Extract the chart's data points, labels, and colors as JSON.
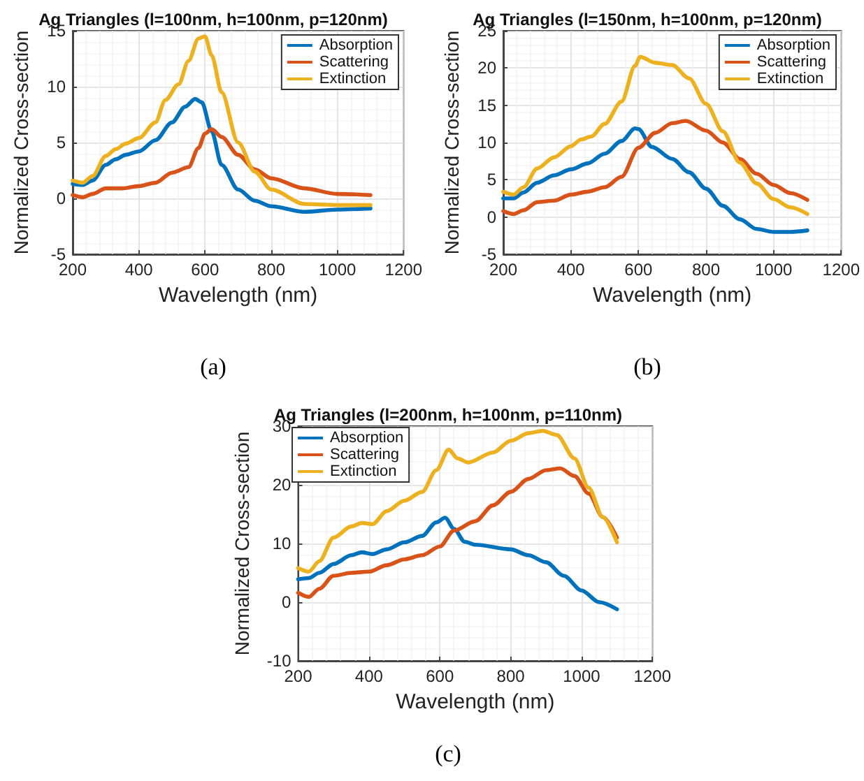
{
  "chart_data": [
    {
      "type": "line",
      "title": "Ag Triangles (l=100nm, h=100nm, p=120nm)",
      "xlabel": "Wavelength (nm)",
      "ylabel": "Normalized Cross-section",
      "annotations": [
        "(a)"
      ],
      "xlim": [
        200,
        1200
      ],
      "xticks": [
        200,
        400,
        600,
        800,
        1000,
        1200
      ],
      "ylim": [
        -5,
        15
      ],
      "yticks": [
        -5,
        0,
        5,
        10,
        15
      ],
      "grid": true,
      "legend": "top right",
      "series": [
        {
          "name": "Absorption",
          "color": "#0072bd",
          "x": [
            200,
            230,
            260,
            300,
            330,
            360,
            400,
            450,
            500,
            540,
            570,
            590,
            620,
            650,
            700,
            750,
            800,
            900,
            1000,
            1100
          ],
          "values": [
            1.3,
            1.2,
            1.6,
            3.0,
            3.5,
            3.9,
            4.2,
            5.2,
            6.8,
            8.2,
            8.9,
            8.6,
            6.0,
            3.0,
            0.8,
            -0.2,
            -0.7,
            -1.2,
            -1.0,
            -0.9
          ]
        },
        {
          "name": "Scattering",
          "color": "#d95319",
          "x": [
            200,
            230,
            260,
            300,
            350,
            400,
            450,
            500,
            550,
            580,
            600,
            620,
            650,
            700,
            750,
            800,
            900,
            1000,
            1100
          ],
          "values": [
            0.3,
            0.1,
            0.4,
            0.9,
            0.9,
            1.1,
            1.4,
            2.3,
            2.8,
            4.5,
            5.8,
            6.2,
            5.5,
            3.9,
            2.6,
            1.8,
            0.9,
            0.4,
            0.3
          ]
        },
        {
          "name": "Extinction",
          "color": "#edb120",
          "x": [
            200,
            230,
            260,
            300,
            330,
            360,
            400,
            450,
            480,
            520,
            550,
            580,
            600,
            620,
            650,
            700,
            750,
            800,
            900,
            1000,
            1100
          ],
          "values": [
            1.6,
            1.4,
            2.0,
            3.8,
            4.4,
            4.9,
            5.4,
            6.8,
            8.8,
            10.2,
            12.3,
            14.3,
            14.5,
            12.8,
            9.5,
            5.0,
            2.4,
            0.8,
            -0.5,
            -0.6,
            -0.6
          ]
        }
      ]
    },
    {
      "type": "line",
      "title": "Ag Triangles (l=150nm, h=100nm, p=120nm)",
      "xlabel": "Wavelength (nm)",
      "ylabel": "Normalized Cross-section",
      "annotations": [
        "(b)"
      ],
      "xlim": [
        200,
        1200
      ],
      "xticks": [
        200,
        400,
        600,
        800,
        1000,
        1200
      ],
      "ylim": [
        -5,
        25
      ],
      "yticks": [
        -5,
        0,
        5,
        10,
        15,
        20,
        25
      ],
      "grid": true,
      "legend": "top right",
      "series": [
        {
          "name": "Absorption",
          "color": "#0072bd",
          "x": [
            200,
            230,
            260,
            300,
            350,
            400,
            450,
            500,
            550,
            590,
            600,
            640,
            700,
            750,
            800,
            850,
            900,
            950,
            1000,
            1050,
            1100
          ],
          "values": [
            2.5,
            2.5,
            3.3,
            4.6,
            5.6,
            6.4,
            7.2,
            8.5,
            10.2,
            11.9,
            11.8,
            9.4,
            7.8,
            6.0,
            3.8,
            1.5,
            -0.3,
            -1.6,
            -2.0,
            -2.0,
            -1.8
          ]
        },
        {
          "name": "Scattering",
          "color": "#d95319",
          "x": [
            200,
            230,
            260,
            300,
            350,
            400,
            450,
            500,
            550,
            600,
            650,
            700,
            740,
            800,
            850,
            900,
            950,
            1000,
            1050,
            1100
          ],
          "values": [
            0.8,
            0.4,
            0.9,
            2.0,
            2.2,
            3.0,
            3.4,
            4.0,
            5.4,
            9.3,
            11.3,
            12.6,
            12.9,
            11.6,
            10.0,
            7.8,
            5.8,
            4.3,
            3.2,
            2.3
          ]
        },
        {
          "name": "Extinction",
          "color": "#edb120",
          "x": [
            200,
            230,
            260,
            300,
            350,
            400,
            430,
            460,
            500,
            550,
            590,
            605,
            650,
            700,
            750,
            800,
            850,
            900,
            950,
            1000,
            1050,
            1100
          ],
          "values": [
            3.4,
            3.0,
            4.0,
            6.5,
            8.0,
            9.5,
            10.4,
            10.8,
            12.5,
            15.5,
            20.3,
            21.5,
            20.7,
            20.4,
            18.6,
            15.2,
            11.5,
            7.3,
            4.5,
            2.4,
            1.3,
            0.4
          ]
        }
      ]
    },
    {
      "type": "line",
      "title": "Ag Triangles (l=200nm, h=100nm, p=110nm)",
      "xlabel": "Wavelength (nm)",
      "ylabel": "Normalized Cross-section",
      "annotations": [
        "(c)"
      ],
      "xlim": [
        200,
        1200
      ],
      "xticks": [
        200,
        400,
        600,
        800,
        1000,
        1200
      ],
      "ylim": [
        -10,
        30
      ],
      "yticks": [
        -10,
        0,
        10,
        20,
        30
      ],
      "grid": true,
      "legend": "top left",
      "series": [
        {
          "name": "Absorption",
          "color": "#0072bd",
          "x": [
            200,
            230,
            260,
            300,
            350,
            380,
            410,
            450,
            500,
            550,
            590,
            615,
            640,
            670,
            700,
            800,
            850,
            900,
            950,
            1000,
            1050,
            1100
          ],
          "values": [
            3.9,
            4.1,
            5.0,
            6.5,
            8.0,
            8.5,
            8.2,
            9.0,
            10.2,
            11.3,
            13.6,
            14.4,
            12.5,
            10.3,
            9.8,
            9.0,
            8.0,
            6.8,
            4.5,
            2.0,
            0.0,
            -1.2
          ]
        },
        {
          "name": "Scattering",
          "color": "#d95319",
          "x": [
            200,
            230,
            260,
            300,
            350,
            400,
            450,
            500,
            550,
            600,
            640,
            700,
            750,
            800,
            850,
            900,
            940,
            980,
            1020,
            1060,
            1100
          ],
          "values": [
            1.6,
            0.9,
            2.3,
            4.5,
            5.0,
            5.2,
            6.3,
            7.3,
            8.0,
            9.5,
            12.2,
            13.8,
            16.5,
            18.8,
            21.0,
            22.5,
            22.8,
            21.5,
            18.5,
            14.5,
            11.0
          ]
        },
        {
          "name": "Extinction",
          "color": "#edb120",
          "x": [
            200,
            230,
            260,
            300,
            350,
            380,
            410,
            450,
            500,
            550,
            590,
            625,
            650,
            680,
            750,
            800,
            850,
            890,
            930,
            980,
            1020,
            1060,
            1100
          ],
          "values": [
            5.8,
            5.2,
            7.0,
            11.0,
            12.9,
            13.5,
            13.3,
            15.5,
            17.3,
            18.8,
            22.5,
            26.0,
            24.5,
            23.8,
            25.5,
            27.5,
            28.8,
            29.2,
            28.5,
            24.5,
            19.5,
            14.5,
            10.2
          ]
        }
      ]
    }
  ]
}
